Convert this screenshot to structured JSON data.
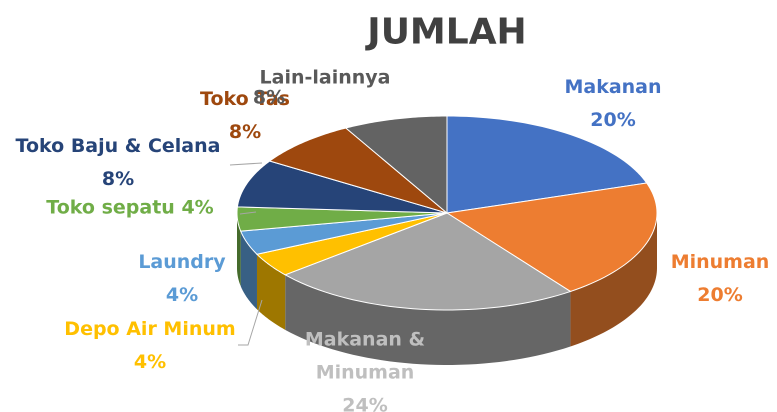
{
  "chart_data": {
    "type": "pie",
    "title": "JUMLAH",
    "categories": [
      "Makanan",
      "Minuman",
      "Makanan & Minuman",
      "Depo Air Minum",
      "Laundry",
      "Toko sepatu",
      "Toko Baju & Celana",
      "Toko Tas",
      "Lain-lainnya"
    ],
    "values": [
      20,
      20,
      24,
      4,
      4,
      4,
      8,
      8,
      8
    ],
    "value_labels": [
      "20%",
      "20%",
      "24%",
      "4%",
      "4%",
      "4%",
      "8%",
      "8%",
      "8%"
    ],
    "colors": [
      "#4472c4",
      "#ed7d31",
      "#a5a5a5",
      "#ffc000",
      "#5b9bd5",
      "#70ad47",
      "#264478",
      "#9e480e",
      "#636363"
    ]
  }
}
